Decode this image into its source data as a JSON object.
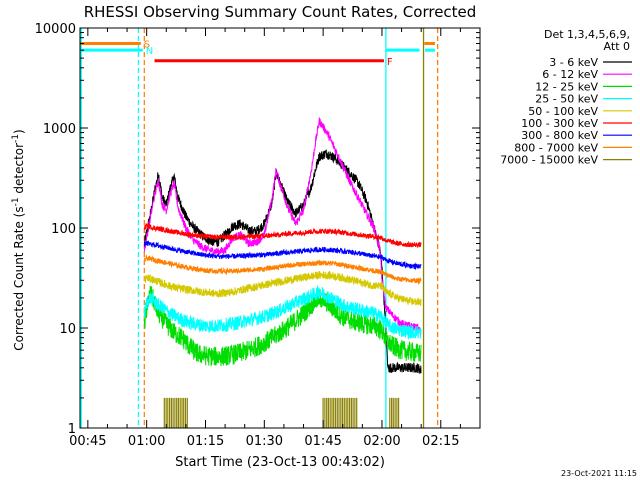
{
  "chart_data": {
    "type": "line",
    "title": "RHESSI Observing Summary Count Rates, Corrected",
    "xlabel": "Start Time (23-Oct-13 00:43:02)",
    "ylabel_parts": [
      "Corrected Count Rate (s",
      "-1",
      " detector",
      "-1",
      ")"
    ],
    "ylog": true,
    "ylim": [
      1,
      10000
    ],
    "xlim_min": [
      43.0,
      145.0
    ],
    "x_ticks": [
      {
        "t": 45,
        "label": "00:45"
      },
      {
        "t": 60,
        "label": "01:00"
      },
      {
        "t": 75,
        "label": "01:15"
      },
      {
        "t": 90,
        "label": "01:30"
      },
      {
        "t": 105,
        "label": "01:45"
      },
      {
        "t": 120,
        "label": "02:00"
      },
      {
        "t": 135,
        "label": "02:15"
      }
    ],
    "y_ticks": [
      {
        "v": 1,
        "label": "1"
      },
      {
        "v": 10,
        "label": "10"
      },
      {
        "v": 100,
        "label": "100"
      },
      {
        "v": 1000,
        "label": "1000"
      },
      {
        "v": 10000,
        "label": "10000"
      }
    ],
    "legend": {
      "placement": "right",
      "header": [
        "Det 1,3,4,5,6,9,",
        "Att 0"
      ],
      "entries": [
        {
          "label": "3 - 6 keV",
          "color": "#000000"
        },
        {
          "label": "6 - 12 keV",
          "color": "#ff00ff"
        },
        {
          "label": "12 - 25 keV",
          "color": "#00dd00"
        },
        {
          "label": "25 - 50 keV",
          "color": "#00ffff"
        },
        {
          "label": "50 - 100 keV",
          "color": "#d4c800"
        },
        {
          "label": "100 - 300 keV",
          "color": "#ff0000"
        },
        {
          "label": "300 - 800 keV",
          "color": "#0000ff"
        },
        {
          "label": "800 - 7000 keV",
          "color": "#ff8000"
        },
        {
          "label": "7000 - 15000 keV",
          "color": "#8b8000"
        }
      ]
    },
    "series": [
      {
        "key": "3-6",
        "color": "#000000",
        "noise": 0.05,
        "points": [
          [
            59.4,
            70
          ],
          [
            60,
            90
          ],
          [
            61,
            140
          ],
          [
            62,
            230
          ],
          [
            63,
            350
          ],
          [
            64,
            200
          ],
          [
            65,
            170
          ],
          [
            66,
            250
          ],
          [
            67,
            330
          ],
          [
            68,
            200
          ],
          [
            70,
            130
          ],
          [
            72,
            100
          ],
          [
            74,
            85
          ],
          [
            76,
            75
          ],
          [
            78,
            72
          ],
          [
            80,
            85
          ],
          [
            82,
            105
          ],
          [
            84,
            110
          ],
          [
            86,
            95
          ],
          [
            88,
            92
          ],
          [
            90,
            110
          ],
          [
            92,
            180
          ],
          [
            93,
            360
          ],
          [
            94,
            280
          ],
          [
            96,
            180
          ],
          [
            98,
            140
          ],
          [
            100,
            170
          ],
          [
            102,
            260
          ],
          [
            103,
            380
          ],
          [
            104,
            520
          ],
          [
            106,
            560
          ],
          [
            108,
            500
          ],
          [
            110,
            420
          ],
          [
            112,
            350
          ],
          [
            114,
            280
          ],
          [
            116,
            190
          ],
          [
            117,
            140
          ],
          [
            118,
            100
          ],
          [
            119.5,
            60
          ],
          [
            120,
            40
          ],
          [
            121,
            10
          ],
          [
            121.5,
            4
          ],
          [
            123,
            4
          ],
          [
            125,
            4
          ],
          [
            127,
            4
          ],
          [
            129,
            4
          ],
          [
            130,
            3.8
          ]
        ]
      },
      {
        "key": "6-12",
        "color": "#ff00ff",
        "noise": 0.04,
        "points": [
          [
            59.4,
            60
          ],
          [
            60,
            80
          ],
          [
            61,
            130
          ],
          [
            62,
            210
          ],
          [
            63,
            300
          ],
          [
            64,
            170
          ],
          [
            65,
            150
          ],
          [
            66,
            220
          ],
          [
            67,
            280
          ],
          [
            68,
            160
          ],
          [
            70,
            100
          ],
          [
            72,
            75
          ],
          [
            74,
            65
          ],
          [
            76,
            60
          ],
          [
            78,
            58
          ],
          [
            80,
            60
          ],
          [
            82,
            80
          ],
          [
            84,
            85
          ],
          [
            86,
            70
          ],
          [
            88,
            72
          ],
          [
            90,
            85
          ],
          [
            92,
            200
          ],
          [
            93,
            380
          ],
          [
            94,
            280
          ],
          [
            96,
            160
          ],
          [
            98,
            110
          ],
          [
            100,
            150
          ],
          [
            102,
            380
          ],
          [
            103,
            700
          ],
          [
            104,
            1180
          ],
          [
            106,
            900
          ],
          [
            108,
            620
          ],
          [
            110,
            420
          ],
          [
            112,
            280
          ],
          [
            114,
            200
          ],
          [
            116,
            140
          ],
          [
            118,
            100
          ],
          [
            119.5,
            60
          ],
          [
            120,
            30
          ],
          [
            121,
            16
          ],
          [
            123,
            13
          ],
          [
            125,
            11
          ],
          [
            127,
            10.5
          ],
          [
            129,
            10
          ],
          [
            130,
            9
          ]
        ]
      },
      {
        "key": "12-25",
        "color": "#00dd00",
        "noise": 0.1,
        "points": [
          [
            59.4,
            10
          ],
          [
            60,
            16
          ],
          [
            61,
            22
          ],
          [
            62,
            18
          ],
          [
            63,
            14
          ],
          [
            65,
            11
          ],
          [
            67,
            9
          ],
          [
            69,
            8
          ],
          [
            71,
            6.5
          ],
          [
            73,
            5.5
          ],
          [
            76,
            5.2
          ],
          [
            79,
            5.2
          ],
          [
            82,
            5.4
          ],
          [
            85,
            5.8
          ],
          [
            88,
            6.5
          ],
          [
            91,
            7.5
          ],
          [
            94,
            9
          ],
          [
            97,
            11
          ],
          [
            100,
            14
          ],
          [
            102,
            17
          ],
          [
            104,
            20
          ],
          [
            106,
            18
          ],
          [
            108,
            15
          ],
          [
            110,
            13
          ],
          [
            112,
            12
          ],
          [
            115,
            11
          ],
          [
            118,
            10.5
          ],
          [
            120,
            9.5
          ],
          [
            121,
            7.5
          ],
          [
            123,
            6.5
          ],
          [
            125,
            6
          ],
          [
            127,
            5.8
          ],
          [
            129,
            5.6
          ],
          [
            130,
            5.5
          ]
        ]
      },
      {
        "key": "25-50",
        "color": "#00ffff",
        "noise": 0.07,
        "points": [
          [
            59.4,
            14
          ],
          [
            60,
            18
          ],
          [
            61,
            20
          ],
          [
            63,
            17
          ],
          [
            66,
            14
          ],
          [
            69,
            12
          ],
          [
            72,
            11
          ],
          [
            75,
            10.5
          ],
          [
            78,
            10.5
          ],
          [
            82,
            11
          ],
          [
            86,
            12
          ],
          [
            90,
            13
          ],
          [
            94,
            15
          ],
          [
            98,
            18
          ],
          [
            102,
            21
          ],
          [
            104,
            23
          ],
          [
            106,
            21
          ],
          [
            108,
            19
          ],
          [
            110,
            17
          ],
          [
            112,
            16
          ],
          [
            115,
            15
          ],
          [
            118,
            14
          ],
          [
            120,
            13
          ],
          [
            121,
            11
          ],
          [
            123,
            10
          ],
          [
            125,
            9.5
          ],
          [
            127,
            9.2
          ],
          [
            130,
            9
          ]
        ]
      },
      {
        "key": "50-100",
        "color": "#d4c800",
        "noise": 0.04,
        "points": [
          [
            59.4,
            30
          ],
          [
            60,
            32
          ],
          [
            62,
            30
          ],
          [
            65,
            27
          ],
          [
            68,
            25
          ],
          [
            71,
            24
          ],
          [
            74,
            23
          ],
          [
            78,
            22
          ],
          [
            82,
            23
          ],
          [
            86,
            25
          ],
          [
            90,
            27
          ],
          [
            94,
            29
          ],
          [
            98,
            31
          ],
          [
            102,
            33
          ],
          [
            105,
            34
          ],
          [
            108,
            33
          ],
          [
            111,
            31
          ],
          [
            114,
            29
          ],
          [
            117,
            27
          ],
          [
            120,
            26
          ],
          [
            121,
            23
          ],
          [
            124,
            20
          ],
          [
            127,
            18.5
          ],
          [
            130,
            18
          ]
        ]
      },
      {
        "key": "100-300",
        "color": "#ff0000",
        "noise": 0.025,
        "points": [
          [
            59.4,
            100
          ],
          [
            60,
            105
          ],
          [
            62,
            100
          ],
          [
            65,
            95
          ],
          [
            68,
            90
          ],
          [
            71,
            86
          ],
          [
            74,
            83
          ],
          [
            78,
            81
          ],
          [
            82,
            81
          ],
          [
            86,
            82
          ],
          [
            90,
            83
          ],
          [
            94,
            86
          ],
          [
            98,
            89
          ],
          [
            102,
            92
          ],
          [
            105,
            93
          ],
          [
            108,
            92
          ],
          [
            111,
            89
          ],
          [
            114,
            86
          ],
          [
            117,
            83
          ],
          [
            120,
            80
          ],
          [
            121,
            75
          ],
          [
            124,
            70
          ],
          [
            127,
            68
          ],
          [
            130,
            68
          ]
        ]
      },
      {
        "key": "300-800",
        "color": "#0000ff",
        "noise": 0.025,
        "points": [
          [
            59.4,
            68
          ],
          [
            60,
            70
          ],
          [
            62,
            68
          ],
          [
            65,
            64
          ],
          [
            68,
            60
          ],
          [
            71,
            57
          ],
          [
            74,
            54
          ],
          [
            78,
            52
          ],
          [
            82,
            52
          ],
          [
            86,
            53
          ],
          [
            90,
            54
          ],
          [
            94,
            56
          ],
          [
            98,
            58
          ],
          [
            102,
            60
          ],
          [
            105,
            61
          ],
          [
            108,
            60
          ],
          [
            111,
            58
          ],
          [
            114,
            56
          ],
          [
            117,
            53
          ],
          [
            120,
            51
          ],
          [
            121,
            48
          ],
          [
            124,
            44
          ],
          [
            127,
            42
          ],
          [
            130,
            41
          ]
        ]
      },
      {
        "key": "800-7000",
        "color": "#ff8000",
        "noise": 0.025,
        "points": [
          [
            59.4,
            48
          ],
          [
            60,
            50
          ],
          [
            62,
            48
          ],
          [
            65,
            45
          ],
          [
            68,
            42
          ],
          [
            71,
            40
          ],
          [
            74,
            38
          ],
          [
            78,
            37
          ],
          [
            82,
            37
          ],
          [
            86,
            38
          ],
          [
            90,
            39
          ],
          [
            94,
            41
          ],
          [
            98,
            43
          ],
          [
            102,
            44
          ],
          [
            105,
            45
          ],
          [
            108,
            44
          ],
          [
            111,
            42
          ],
          [
            114,
            40
          ],
          [
            117,
            38
          ],
          [
            120,
            36
          ],
          [
            121,
            34
          ],
          [
            124,
            31
          ],
          [
            127,
            30
          ],
          [
            130,
            29.5
          ]
        ]
      }
    ],
    "spikes_7000_15000": [
      {
        "t_start": 64.5,
        "t_end": 70.5
      },
      {
        "t_start": 105.0,
        "t_end": 114.0
      },
      {
        "t_start": 122.0,
        "t_end": 124.5
      }
    ],
    "flags": [
      {
        "label": "S",
        "color": "#ff8000",
        "value": 7000,
        "segments": [
          [
            43.0,
            58.5
          ],
          [
            130.8,
            133.5
          ]
        ]
      },
      {
        "label": "N",
        "color": "#00ffff",
        "value": 6000,
        "segments": [
          [
            43.0,
            59.0
          ],
          [
            121.0,
            129.6
          ],
          [
            131.0,
            133.5
          ]
        ]
      },
      {
        "label": "F",
        "color": "#ff0000",
        "value": 4700,
        "segments": [
          [
            62.0,
            120.5
          ]
        ]
      }
    ],
    "vlines": [
      {
        "t": 43.3,
        "color": "#00ffff",
        "dashed": false
      },
      {
        "t": 57.9,
        "color": "#00ffff",
        "dashed": true
      },
      {
        "t": 59.4,
        "color": "#ff8000",
        "dashed": true
      },
      {
        "t": 121.0,
        "color": "#00ffff",
        "dashed": false
      },
      {
        "t": 130.6,
        "color": "#8b8000",
        "dashed": false
      },
      {
        "t": 134.2,
        "color": "#ff8000",
        "dashed": true
      }
    ],
    "timestamp": "23-Oct-2021 11:15"
  }
}
